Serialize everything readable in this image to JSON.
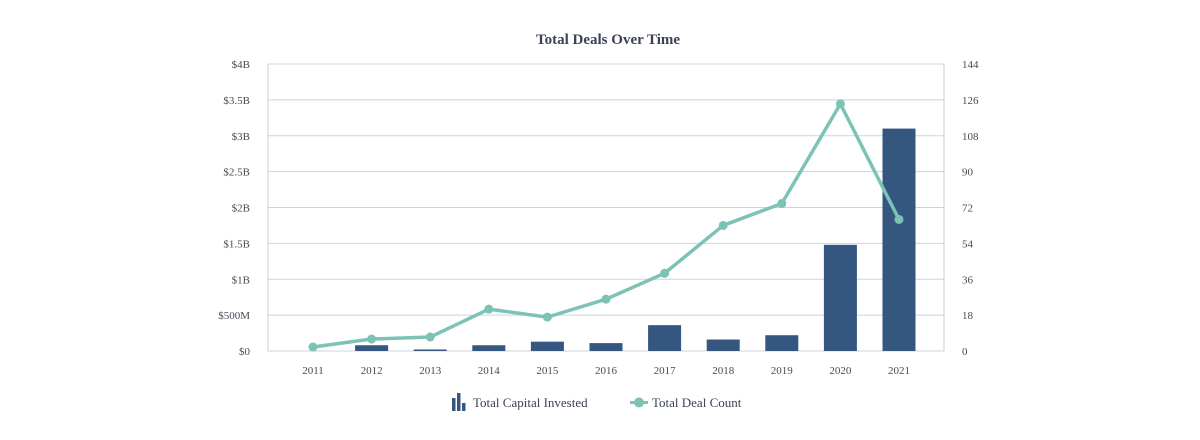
{
  "chart_data": {
    "type": "bar+line",
    "title": "Total Deals Over Time",
    "categories": [
      "2011",
      "2012",
      "2013",
      "2014",
      "2015",
      "2016",
      "2017",
      "2018",
      "2019",
      "2020",
      "2021"
    ],
    "series": [
      {
        "name": "Total Capital Invested",
        "type": "bar",
        "axis": "left",
        "unit": "USD billions",
        "values": [
          0.0,
          0.08,
          0.02,
          0.08,
          0.13,
          0.11,
          0.36,
          0.16,
          0.22,
          1.48,
          3.1
        ]
      },
      {
        "name": "Total Deal Count",
        "type": "line",
        "axis": "right",
        "values": [
          2,
          6,
          7,
          21,
          17,
          26,
          39,
          63,
          74,
          124,
          66
        ]
      }
    ],
    "y_left": {
      "ylim": [
        0,
        4
      ],
      "tick_values": [
        0,
        0.5,
        1,
        1.5,
        2,
        2.5,
        3,
        3.5,
        4
      ],
      "tick_labels": [
        "$0",
        "$500M",
        "$1B",
        "$1.5B",
        "$2B",
        "$2.5B",
        "$3B",
        "$3.5B",
        "$4B"
      ]
    },
    "y_right": {
      "ylim": [
        0,
        144
      ],
      "tick_labels": [
        "0",
        "18",
        "36",
        "54",
        "72",
        "90",
        "108",
        "126",
        "144"
      ]
    },
    "grid": true,
    "legend": "bottom-center",
    "colors": {
      "bar": "#34567f",
      "line": "#7cc3b6",
      "grid": "#cfd3d8",
      "axis": "#c8ccd2",
      "text": "#444a55",
      "title": "#3a4257"
    },
    "legend_icons": [
      "bar-chart-icon",
      "line-marker-icon"
    ]
  }
}
